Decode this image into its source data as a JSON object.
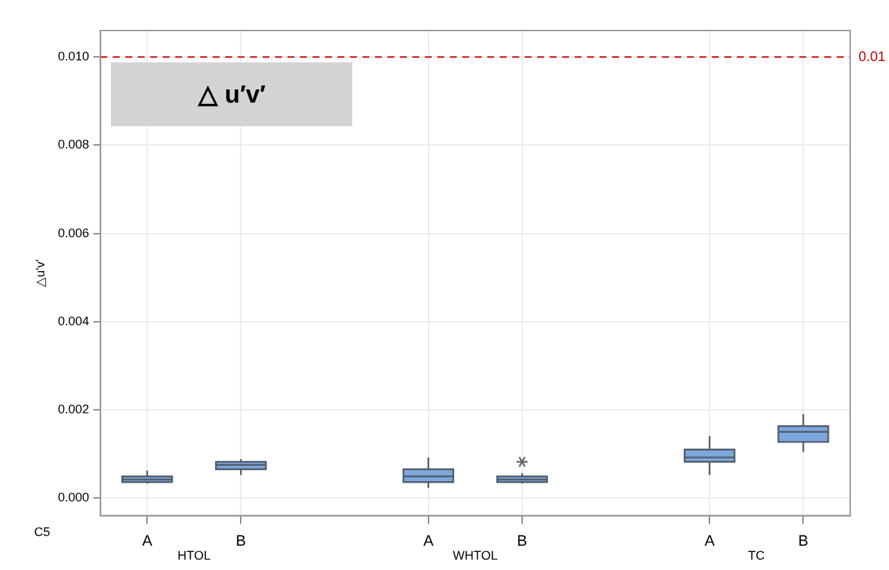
{
  "chart_data": {
    "type": "box",
    "title": "△ u′v′",
    "ylabel": "△u'v'",
    "categories": [
      "A",
      "B",
      null,
      "A",
      "B",
      null,
      "A",
      "B"
    ],
    "boxes": [
      {
        "low": 0.00033,
        "q1": 0.00036,
        "median": 0.00042,
        "q3": 0.00049,
        "high": 0.00062
      },
      {
        "low": 0.00052,
        "q1": 0.00065,
        "median": 0.00075,
        "q3": 0.00082,
        "high": 0.00088
      },
      null,
      {
        "low": 0.00023,
        "q1": 0.00036,
        "median": 0.00049,
        "q3": 0.00065,
        "high": 0.00092
      },
      {
        "low": 0.00033,
        "q1": 0.00036,
        "median": 0.00042,
        "q3": 0.00049,
        "high": 0.00056,
        "outliers": [
          0.00082
        ]
      },
      null,
      {
        "low": 0.00052,
        "q1": 0.00082,
        "median": 0.00092,
        "q3": 0.0011,
        "high": 0.0014
      },
      {
        "low": 0.00105,
        "q1": 0.00127,
        "median": 0.0015,
        "q3": 0.00163,
        "high": 0.0019
      }
    ],
    "color": "#7ba7dc",
    "ylim": [
      -0.0004,
      0.0106
    ],
    "yticks": [
      {
        "value": 0,
        "label": "0.000"
      },
      {
        "value": 0.002,
        "label": "0.002"
      },
      {
        "value": 0.004,
        "label": "0.004"
      },
      {
        "value": 0.006,
        "label": "0.006"
      },
      {
        "value": 0.008,
        "label": "0.008"
      },
      {
        "value": 0.01,
        "label": "0.010"
      }
    ],
    "ref_lines": [
      {
        "axis": "y",
        "value": 0.01,
        "label": "0.01",
        "color": "#c00000",
        "line_style": "dashed"
      }
    ],
    "annotations": [
      "C5",
      "HTOL",
      "WHTOL",
      "TC"
    ],
    "grid": true,
    "legend": false
  }
}
